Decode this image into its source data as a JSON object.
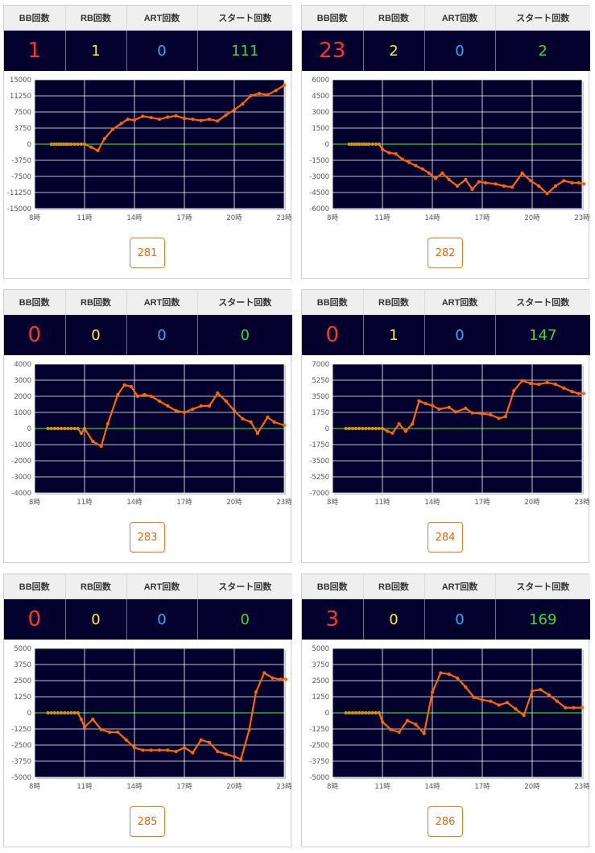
{
  "header_labels": {
    "bb": "BB回数",
    "rb": "RB回数",
    "art": "ART回数",
    "start": "スタート回数"
  },
  "colors": {
    "bb": "#ff3333",
    "rb": "#ffee33",
    "art": "#33aaff",
    "start": "#33dd33",
    "plot_bg": "#03002e",
    "line": "#ff6600",
    "zero_line": "#33cc33"
  },
  "machines": [
    {
      "number": "281",
      "bb": "1",
      "rb": "1",
      "art": "0",
      "start": "111",
      "chart_data": {
        "type": "line",
        "y_ticks": [
          "15000",
          "11250",
          "7500",
          "3750",
          "0",
          "-3750",
          "-7500",
          "-11250",
          "-15000"
        ],
        "x_ticks": [
          "8時",
          "11時",
          "14時",
          "17時",
          "20時",
          "23時"
        ],
        "ylim": [
          -15000,
          15000
        ],
        "xlim": [
          8,
          23
        ],
        "x": [
          9,
          9.15,
          9.3,
          9.45,
          9.6,
          9.75,
          9.9,
          10.05,
          10.2,
          10.4,
          10.6,
          10.8,
          11,
          11.4,
          11.8,
          12.2,
          12.7,
          13.2,
          13.6,
          14,
          14.5,
          15,
          15.5,
          16,
          16.5,
          17,
          17.5,
          18,
          18.5,
          19,
          19.5,
          20,
          20.5,
          21,
          21.5,
          22,
          22.5,
          23
        ],
        "y": [
          0,
          0,
          0,
          0,
          0,
          0,
          0,
          0,
          0,
          0,
          0,
          0,
          0,
          -700,
          -1500,
          1300,
          3500,
          4800,
          5800,
          5600,
          6500,
          6200,
          5800,
          6300,
          6600,
          6000,
          5800,
          5500,
          5800,
          5400,
          6800,
          8000,
          9400,
          11300,
          11800,
          11500,
          12500,
          13700
        ]
      }
    },
    {
      "number": "282",
      "bb": "23",
      "rb": "2",
      "art": "0",
      "start": "2",
      "chart_data": {
        "type": "line",
        "y_ticks": [
          "6000",
          "4500",
          "3000",
          "1500",
          "0",
          "-1500",
          "-3000",
          "-4500",
          "-6000"
        ],
        "x_ticks": [
          "8時",
          "11時",
          "14時",
          "17時",
          "20時",
          "23時"
        ],
        "ylim": [
          -6000,
          6000
        ],
        "xlim": [
          8,
          23
        ],
        "x": [
          9,
          9.15,
          9.3,
          9.45,
          9.6,
          9.75,
          9.9,
          10.05,
          10.2,
          10.4,
          10.6,
          10.8,
          11,
          11.4,
          11.8,
          12.2,
          12.6,
          13,
          13.4,
          13.8,
          14.2,
          14.6,
          15,
          15.5,
          16,
          16.4,
          16.8,
          17.2,
          17.8,
          18.3,
          18.8,
          19.4,
          19.9,
          20.4,
          20.9,
          21.4,
          21.9,
          22.4,
          22.8,
          23.1
        ],
        "y": [
          0,
          0,
          0,
          0,
          0,
          0,
          0,
          0,
          0,
          0,
          0,
          0,
          -500,
          -800,
          -900,
          -1400,
          -1700,
          -2000,
          -2300,
          -2700,
          -3200,
          -2700,
          -3300,
          -3900,
          -3300,
          -4200,
          -3500,
          -3600,
          -3700,
          -3900,
          -4000,
          -2700,
          -3400,
          -3900,
          -4600,
          -3900,
          -3400,
          -3600,
          -3600,
          -3700
        ]
      }
    },
    {
      "number": "283",
      "bb": "0",
      "rb": "0",
      "art": "0",
      "start": "0",
      "chart_data": {
        "type": "line",
        "y_ticks": [
          "4000",
          "3000",
          "2000",
          "1000",
          "0",
          "-1000",
          "-2000",
          "-3000",
          "-4000"
        ],
        "x_ticks": [
          "8時",
          "11時",
          "14時",
          "17時",
          "20時",
          "23時"
        ],
        "ylim": [
          -4000,
          4000
        ],
        "xlim": [
          8,
          23
        ],
        "x": [
          8.8,
          9,
          9.2,
          9.4,
          9.6,
          9.8,
          10,
          10.2,
          10.4,
          10.6,
          10.8,
          11,
          11.5,
          12,
          12.4,
          13,
          13.4,
          13.8,
          14.2,
          14.6,
          15,
          15.5,
          16,
          16.5,
          17,
          17.5,
          18,
          18.5,
          19,
          19.5,
          20,
          20.5,
          21,
          21.4,
          22,
          22.4,
          23
        ],
        "y": [
          0,
          0,
          0,
          0,
          0,
          0,
          0,
          0,
          0,
          0,
          -300,
          0,
          -800,
          -1100,
          300,
          2100,
          2700,
          2600,
          2000,
          2100,
          2000,
          1700,
          1400,
          1100,
          1000,
          1200,
          1400,
          1400,
          2200,
          1700,
          1100,
          600,
          400,
          -300,
          700,
          400,
          200
        ]
      }
    },
    {
      "number": "284",
      "bb": "0",
      "rb": "1",
      "art": "0",
      "start": "147",
      "chart_data": {
        "type": "line",
        "y_ticks": [
          "7000",
          "5250",
          "3500",
          "1750",
          "0",
          "-1750",
          "-3500",
          "-5250",
          "-7000"
        ],
        "x_ticks": [
          "8時",
          "11時",
          "14時",
          "17時",
          "20時",
          "23時"
        ],
        "ylim": [
          -7000,
          7000
        ],
        "xlim": [
          8,
          23
        ],
        "x": [
          8.8,
          9,
          9.2,
          9.4,
          9.6,
          9.8,
          10,
          10.2,
          10.4,
          10.6,
          10.8,
          11,
          11.3,
          11.6,
          12,
          12.4,
          12.8,
          13.2,
          13.6,
          14,
          14.4,
          15,
          15.4,
          16,
          16.4,
          17,
          17.5,
          18,
          18.4,
          18.9,
          19.4,
          19.9,
          20.4,
          20.9,
          21.4,
          21.9,
          22.4,
          22.8,
          23.1
        ],
        "y": [
          0,
          0,
          0,
          0,
          0,
          0,
          0,
          0,
          0,
          0,
          0,
          0,
          -300,
          -500,
          500,
          -300,
          500,
          3000,
          2700,
          2500,
          2100,
          2300,
          1800,
          2200,
          1700,
          1600,
          1500,
          1100,
          1300,
          4100,
          5200,
          4900,
          4800,
          5000,
          4800,
          4400,
          4000,
          3800,
          3800
        ]
      }
    },
    {
      "number": "285",
      "bb": "0",
      "rb": "0",
      "art": "0",
      "start": "0",
      "chart_data": {
        "type": "line",
        "y_ticks": [
          "5000",
          "3750",
          "2500",
          "1250",
          "0",
          "-1250",
          "-2500",
          "-3750",
          "-5000"
        ],
        "x_ticks": [
          "8時",
          "11時",
          "14時",
          "17時",
          "20時",
          "23時"
        ],
        "ylim": [
          -5000,
          5000
        ],
        "xlim": [
          8,
          23
        ],
        "x": [
          8.8,
          9,
          9.2,
          9.4,
          9.6,
          9.8,
          10,
          10.2,
          10.4,
          10.6,
          10.8,
          11,
          11.5,
          12,
          12.5,
          13,
          13.5,
          14,
          14.5,
          15,
          15.5,
          16,
          16.5,
          17,
          17.5,
          18,
          18.5,
          19,
          19.5,
          20,
          20.4,
          20.9,
          21.3,
          21.8,
          22.3,
          22.8,
          23.1
        ],
        "y": [
          0,
          0,
          0,
          0,
          0,
          0,
          0,
          0,
          0,
          0,
          -500,
          -1100,
          -500,
          -1300,
          -1500,
          -1500,
          -2100,
          -2700,
          -2900,
          -2900,
          -2900,
          -2900,
          -3000,
          -2700,
          -3100,
          -2100,
          -2300,
          -3000,
          -3200,
          -3400,
          -3600,
          -1300,
          1600,
          3100,
          2700,
          2600,
          2600
        ]
      }
    },
    {
      "number": "286",
      "bb": "3",
      "rb": "0",
      "art": "0",
      "start": "169",
      "chart_data": {
        "type": "line",
        "y_ticks": [
          "5000",
          "3750",
          "2500",
          "1250",
          "0",
          "-1250",
          "-2500",
          "-3750",
          "-5000"
        ],
        "x_ticks": [
          "8時",
          "11時",
          "14時",
          "17時",
          "20時",
          "23時"
        ],
        "ylim": [
          -5000,
          5000
        ],
        "xlim": [
          8,
          23
        ],
        "x": [
          8.8,
          9,
          9.2,
          9.4,
          9.6,
          9.8,
          10,
          10.2,
          10.4,
          10.6,
          10.8,
          11,
          11.5,
          12,
          12.5,
          13,
          13.5,
          14,
          14.5,
          15,
          15.5,
          16,
          16.5,
          17,
          17.5,
          18,
          18.5,
          19,
          19.5,
          20,
          20.5,
          21,
          21.5,
          22,
          22.5,
          23
        ],
        "y": [
          0,
          0,
          0,
          0,
          0,
          0,
          0,
          0,
          0,
          0,
          0,
          -700,
          -1300,
          -1500,
          -600,
          -900,
          -1600,
          1600,
          3100,
          3000,
          2700,
          2000,
          1200,
          1000,
          900,
          600,
          800,
          300,
          -200,
          1700,
          1800,
          1400,
          900,
          400,
          400,
          400
        ]
      }
    }
  ]
}
